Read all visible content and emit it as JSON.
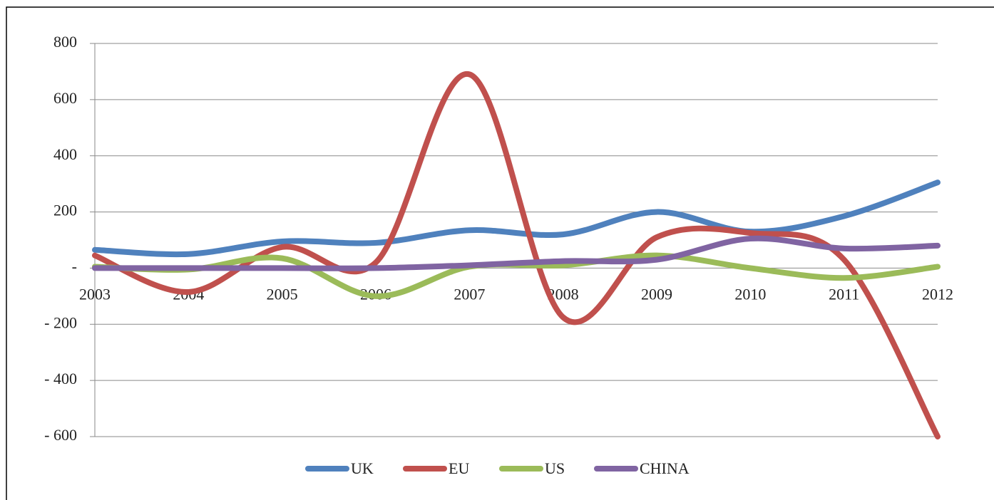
{
  "chart_data": {
    "type": "line",
    "categories": [
      "2003",
      "2004",
      "2005",
      "2006",
      "2007",
      "2008",
      "2009",
      "2010",
      "2011",
      "2012"
    ],
    "series": [
      {
        "name": "UK",
        "color": "#4f81bd",
        "values": [
          65,
          50,
          95,
          90,
          135,
          120,
          200,
          130,
          185,
          305
        ]
      },
      {
        "name": "EU",
        "color": "#c0504d",
        "values": [
          45,
          -85,
          75,
          20,
          690,
          -175,
          110,
          125,
          30,
          -600
        ]
      },
      {
        "name": "US",
        "color": "#9bbb59",
        "values": [
          5,
          -5,
          35,
          -100,
          5,
          10,
          45,
          0,
          -35,
          5
        ]
      },
      {
        "name": "CHINA",
        "color": "#8064a2",
        "values": [
          0,
          0,
          0,
          0,
          10,
          25,
          30,
          105,
          70,
          80
        ]
      }
    ],
    "ylim": [
      -600,
      800
    ],
    "yticks": [
      {
        "value": -600,
        "label": "- 600"
      },
      {
        "value": -400,
        "label": "- 400"
      },
      {
        "value": -200,
        "label": "- 200"
      },
      {
        "value": 0,
        "label": "-"
      },
      200,
      400,
      600,
      800
    ],
    "grid": true,
    "smooth": true,
    "legend": "bottom"
  }
}
